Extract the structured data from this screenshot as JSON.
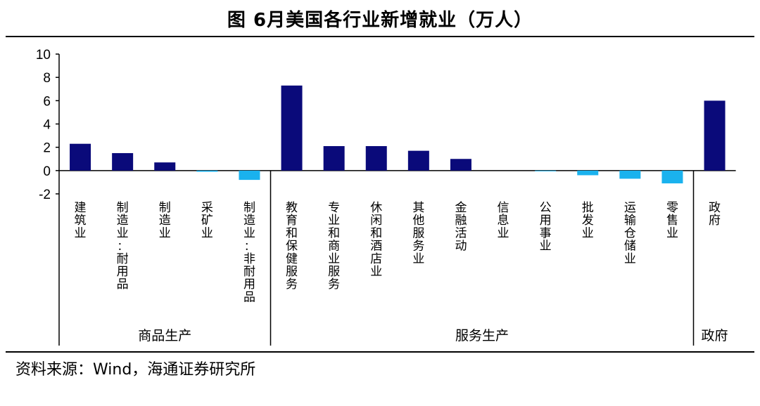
{
  "title": "图 6月美国各行业新增就业（万人）",
  "source": "资料来源：Wind，海通证券研究所",
  "colors": {
    "positive": "#0a0a7a",
    "negative": "#1ab2ee"
  },
  "chart_data": {
    "type": "bar",
    "title": "图 6月美国各行业新增就业（万人）",
    "ylim": [
      -2,
      10
    ],
    "yticks": [
      -2,
      0,
      2,
      4,
      6,
      8,
      10
    ],
    "categories": [
      "建筑业",
      "制造业:耐用品",
      "制造业",
      "采矿业",
      "制造业:非耐用品",
      "教育和保健服务",
      "专业和商业服务",
      "休闲和酒店业",
      "其他服务业",
      "金融活动",
      "信息业",
      "公用事业",
      "批发业",
      "运输仓储业",
      "零售业",
      "政府"
    ],
    "values": [
      2.3,
      1.5,
      0.7,
      -0.1,
      -0.8,
      7.3,
      2.1,
      2.1,
      1.7,
      1.0,
      0.0,
      -0.05,
      -0.4,
      -0.7,
      -1.1,
      6.0
    ],
    "groups": [
      {
        "name": "商品生产",
        "count": 5
      },
      {
        "name": "服务生产",
        "count": 10
      },
      {
        "name": "政府",
        "count": 1
      }
    ],
    "grid": false
  }
}
